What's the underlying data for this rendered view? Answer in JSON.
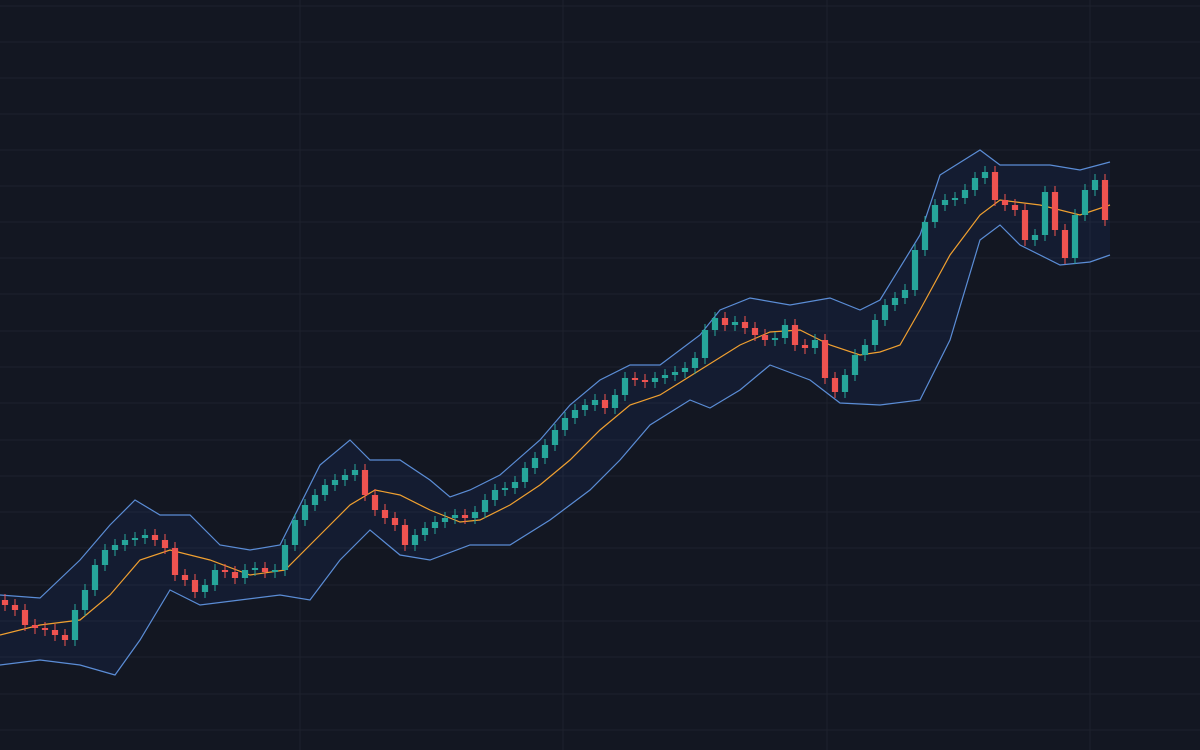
{
  "chart_data": {
    "type": "candlestick",
    "x": [
      0,
      1,
      2,
      3,
      4,
      5,
      6,
      7,
      8,
      9,
      10,
      11,
      12,
      13,
      14,
      15,
      16,
      17,
      18,
      19,
      20,
      21,
      22,
      23,
      24,
      25,
      26,
      27,
      28,
      29,
      30,
      31,
      32,
      33,
      34,
      35,
      36,
      37,
      38,
      39,
      40,
      41,
      42,
      43,
      44,
      45,
      46,
      47,
      48,
      49,
      50,
      51,
      52,
      53,
      54,
      55,
      56,
      57,
      58,
      59,
      60,
      61,
      62,
      63,
      64,
      65,
      66,
      67,
      68,
      69,
      70,
      71,
      72,
      73,
      74,
      75,
      76,
      77,
      78,
      79,
      80,
      81,
      82,
      83,
      84,
      85,
      86,
      87,
      88,
      89,
      90,
      91,
      92,
      93,
      94,
      95,
      96,
      97,
      98,
      99,
      100,
      101,
      102,
      103,
      104,
      105,
      106,
      107,
      108,
      109,
      110
    ],
    "open": [
      150,
      145,
      140,
      125,
      122,
      120,
      115,
      110,
      140,
      160,
      185,
      200,
      205,
      210,
      212,
      215,
      210,
      202,
      175,
      170,
      158,
      165,
      180,
      178,
      172,
      180,
      182,
      178,
      180,
      205,
      230,
      245,
      255,
      265,
      270,
      275,
      280,
      255,
      240,
      232,
      225,
      205,
      215,
      222,
      228,
      232,
      235,
      232,
      238,
      250,
      260,
      262,
      268,
      282,
      292,
      305,
      320,
      332,
      340,
      345,
      350,
      342,
      355,
      372,
      370,
      368,
      372,
      375,
      378,
      382,
      392,
      420,
      432,
      425,
      428,
      422,
      415,
      410,
      412,
      425,
      405,
      402,
      410,
      372,
      358,
      375,
      395,
      405,
      430,
      445,
      452,
      460,
      500,
      528,
      545,
      550,
      552,
      560,
      572,
      578,
      550,
      545,
      540,
      510,
      515,
      558,
      520,
      492,
      535,
      560,
      570
    ],
    "high": [
      156,
      151,
      146,
      131,
      128,
      126,
      121,
      146,
      166,
      191,
      206,
      211,
      216,
      218,
      221,
      221,
      216,
      208,
      181,
      176,
      171,
      186,
      186,
      184,
      186,
      188,
      188,
      186,
      211,
      236,
      251,
      261,
      271,
      276,
      281,
      286,
      286,
      261,
      246,
      238,
      231,
      221,
      228,
      234,
      238,
      241,
      241,
      244,
      256,
      266,
      268,
      274,
      288,
      298,
      311,
      326,
      338,
      346,
      351,
      356,
      356,
      361,
      378,
      378,
      376,
      378,
      381,
      384,
      388,
      398,
      426,
      438,
      438,
      434,
      434,
      428,
      421,
      418,
      431,
      431,
      411,
      416,
      416,
      378,
      381,
      401,
      411,
      436,
      451,
      458,
      466,
      506,
      534,
      551,
      556,
      558,
      566,
      578,
      584,
      584,
      556,
      551,
      546,
      521,
      564,
      564,
      526,
      541,
      566,
      576,
      576
    ],
    "low": [
      139,
      134,
      119,
      116,
      114,
      109,
      104,
      104,
      134,
      154,
      179,
      194,
      199,
      204,
      206,
      204,
      196,
      169,
      164,
      152,
      152,
      159,
      172,
      166,
      166,
      174,
      172,
      172,
      174,
      199,
      224,
      239,
      249,
      259,
      264,
      269,
      249,
      234,
      226,
      219,
      199,
      199,
      209,
      216,
      222,
      226,
      226,
      226,
      232,
      244,
      254,
      256,
      262,
      276,
      286,
      299,
      314,
      326,
      334,
      339,
      336,
      336,
      349,
      364,
      362,
      362,
      366,
      369,
      372,
      376,
      386,
      414,
      419,
      419,
      416,
      409,
      404,
      404,
      406,
      399,
      396,
      396,
      366,
      352,
      352,
      369,
      389,
      399,
      424,
      439,
      446,
      454,
      494,
      522,
      539,
      544,
      546,
      554,
      566,
      544,
      539,
      534,
      504,
      504,
      509,
      514,
      486,
      486,
      529,
      554,
      524
    ],
    "close": [
      145,
      140,
      125,
      122,
      120,
      115,
      110,
      140,
      160,
      185,
      200,
      205,
      210,
      212,
      215,
      210,
      202,
      175,
      170,
      158,
      165,
      180,
      178,
      172,
      180,
      182,
      178,
      180,
      205,
      230,
      245,
      255,
      265,
      270,
      275,
      280,
      255,
      240,
      232,
      225,
      205,
      215,
      222,
      228,
      232,
      235,
      232,
      238,
      250,
      260,
      262,
      268,
      282,
      292,
      305,
      320,
      332,
      340,
      345,
      350,
      342,
      355,
      372,
      370,
      368,
      372,
      375,
      378,
      382,
      392,
      420,
      432,
      425,
      428,
      422,
      415,
      410,
      412,
      425,
      405,
      402,
      410,
      372,
      358,
      375,
      395,
      405,
      430,
      445,
      452,
      460,
      500,
      528,
      545,
      550,
      552,
      560,
      572,
      578,
      550,
      545,
      540,
      510,
      515,
      558,
      520,
      492,
      535,
      560,
      570,
      530
    ],
    "up_color": "#26a69a",
    "down_color": "#ef5350",
    "series": [
      {
        "color": "#5b8dd6",
        "x": [
          -0.5,
          3.5,
          7.5,
          10.5,
          13,
          15.5,
          18.5,
          21.5,
          24.5,
          27.5,
          29.5,
          31.5,
          34.5,
          36.5,
          39.5,
          42.5,
          44.5,
          46.5,
          49.5,
          53.5,
          56.5,
          59.5,
          62.5,
          65.5,
          69.5,
          71.5,
          74.5,
          78.5,
          82.5,
          85.5,
          87.5,
          91.5,
          93.5,
          97.5,
          99.5,
          104.5,
          107.5,
          110.5
        ],
        "values": [
          155,
          152,
          190,
          225,
          250,
          235,
          235,
          205,
          200,
          205,
          245,
          285,
          310,
          290,
          290,
          270,
          253,
          260,
          275,
          310,
          345,
          370,
          385,
          385,
          415,
          440,
          452,
          445,
          452,
          440,
          450,
          515,
          575,
          600,
          585,
          585,
          580,
          588
        ]
      },
      {
        "color": "#f0a030",
        "x": [
          -0.5,
          3.5,
          7.5,
          10.5,
          13.5,
          16.5,
          20.5,
          24.5,
          28,
          31.5,
          34.5,
          37,
          39.5,
          42.5,
          45.5,
          47.5,
          50.5,
          53.5,
          56.5,
          59.5,
          62.5,
          65.5,
          69.5,
          73.5,
          76.5,
          79.5,
          82.5,
          85.5,
          87.5,
          89.5,
          91.5,
          94.5,
          97.5,
          99.5,
          103.5,
          107.5,
          110.5
        ],
        "values": [
          115,
          125,
          130,
          155,
          190,
          200,
          190,
          175,
          180,
          215,
          245,
          260,
          255,
          240,
          228,
          230,
          245,
          265,
          290,
          320,
          345,
          355,
          380,
          405,
          418,
          420,
          405,
          395,
          398,
          405,
          440,
          495,
          535,
          550,
          545,
          535,
          545
        ]
      },
      {
        "color": "#5b8dd6",
        "x": [
          -0.5,
          3.5,
          7.5,
          11,
          13.5,
          16.5,
          19.5,
          23.5,
          27.5,
          30.5,
          33.5,
          36.5,
          39.5,
          42.5,
          46.5,
          50.5,
          54.5,
          58.5,
          61.5,
          64.5,
          68.5,
          70.5,
          73.5,
          76.5,
          80.5,
          83.5,
          87.5,
          91.5,
          94.5,
          97.5,
          99.5,
          101.5,
          105.5,
          108.5,
          110.5
        ],
        "values": [
          85,
          90,
          85,
          75,
          110,
          160,
          145,
          150,
          155,
          150,
          190,
          220,
          195,
          190,
          205,
          205,
          230,
          260,
          290,
          325,
          350,
          342,
          360,
          385,
          370,
          347,
          345,
          350,
          410,
          510,
          525,
          505,
          485,
          488,
          495
        ]
      }
    ],
    "xlim": [
      -0.5,
      119.5
    ],
    "ylim": [
      0,
      750
    ],
    "xticks": [
      29.5,
      55.8,
      82.2,
      108.5
    ],
    "yticks": [
      744,
      708,
      672,
      636,
      600,
      564,
      528,
      492,
      456,
      419,
      383,
      347,
      310,
      274,
      238,
      202,
      165,
      129,
      93,
      56,
      20
    ],
    "grid": true
  }
}
